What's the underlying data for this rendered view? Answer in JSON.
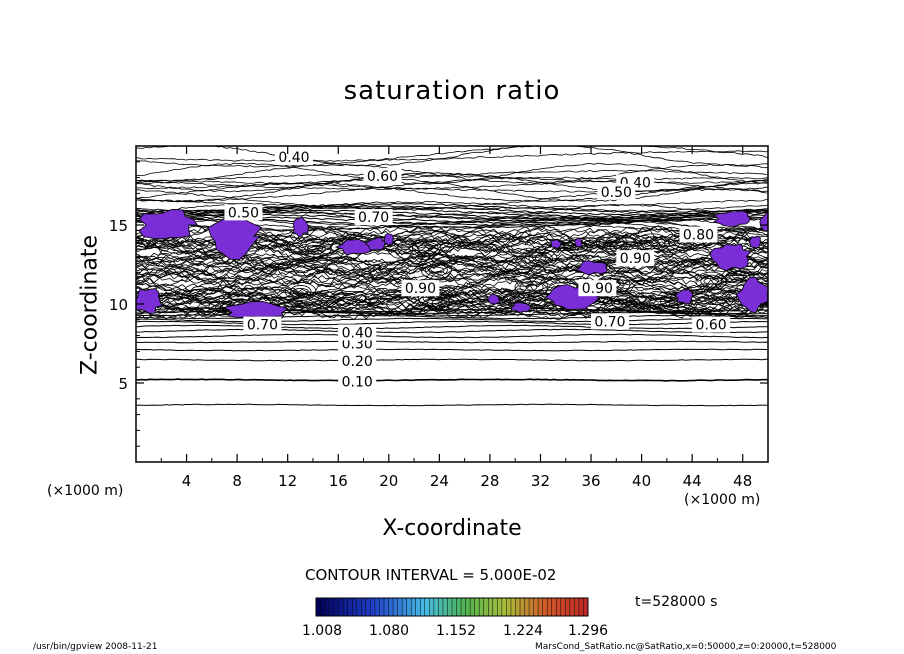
{
  "title": "saturation ratio",
  "footer": {
    "left": "/usr/bin/gpview  2008-11-21",
    "right": "MarsCond_SatRatio.nc@SatRatio,x=0:50000,z=0:20000,t=528000"
  },
  "colors": {
    "supersaturated_fill": "#7a2fd6",
    "contour_line": "#000000",
    "background": "#ffffff"
  },
  "chart_data": {
    "type": "heatmap",
    "subtype": "contour",
    "title": "saturation ratio",
    "xlabel": "X-coordinate",
    "ylabel": "Z-coordinate",
    "x_unit": "(×1000 m)",
    "z_unit": "(×1000 m)",
    "xlim": [
      0,
      50
    ],
    "ylim": [
      0,
      20
    ],
    "x_ticks": [
      4,
      8,
      12,
      16,
      20,
      24,
      28,
      32,
      36,
      40,
      44,
      48
    ],
    "y_ticks": [
      5,
      10,
      15
    ],
    "contour_interval_text": "CONTOUR INTERVAL = 5.000E-02",
    "contour_interval": 0.05,
    "time_text": "t=528000 s",
    "contour_labels": [
      {
        "text": "0.10",
        "x": 17.5,
        "z": 5.1
      },
      {
        "text": "0.20",
        "x": 17.5,
        "z": 6.4
      },
      {
        "text": "0.30",
        "x": 17.5,
        "z": 7.5
      },
      {
        "text": "0.40",
        "x": 17.5,
        "z": 8.2
      },
      {
        "text": "0.40",
        "x": 12.5,
        "z": 19.3
      },
      {
        "text": "0.60",
        "x": 19.5,
        "z": 18.1
      },
      {
        "text": "0.40",
        "x": 39.5,
        "z": 17.7
      },
      {
        "text": "0.50",
        "x": 38.0,
        "z": 17.1
      },
      {
        "text": "0.50",
        "x": 8.5,
        "z": 15.8
      },
      {
        "text": "0.70",
        "x": 18.8,
        "z": 15.5
      },
      {
        "text": "0.80",
        "x": 44.5,
        "z": 14.4
      },
      {
        "text": "0.90",
        "x": 39.5,
        "z": 12.9
      },
      {
        "text": "0.90",
        "x": 36.5,
        "z": 11.0
      },
      {
        "text": "0.90",
        "x": 22.5,
        "z": 11.0
      },
      {
        "text": "0.70",
        "x": 10.0,
        "z": 8.7
      },
      {
        "text": "0.70",
        "x": 37.5,
        "z": 8.9
      },
      {
        "text": "0.60",
        "x": 45.5,
        "z": 8.7
      }
    ],
    "colorbar": {
      "ticks": [
        "1.008",
        "1.080",
        "1.152",
        "1.224",
        "1.296"
      ],
      "range": [
        1.008,
        1.296
      ]
    }
  }
}
